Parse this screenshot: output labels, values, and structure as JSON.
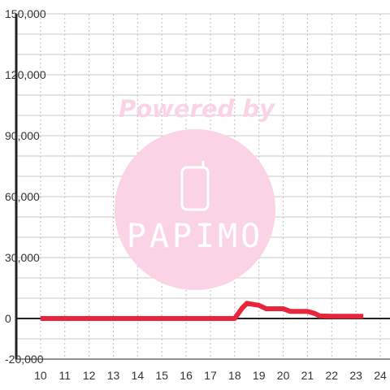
{
  "chart_data": {
    "type": "line",
    "x": [
      10,
      11,
      12,
      13,
      14,
      15,
      16,
      17,
      17.5,
      18,
      18.3,
      18.5,
      19,
      19.3,
      20,
      20.3,
      21,
      21.3,
      21.5,
      22,
      23.3
    ],
    "series": [
      {
        "values": [
          0,
          0,
          0,
          0,
          0,
          0,
          0,
          0,
          0,
          0,
          5000,
          7500,
          6500,
          4800,
          4800,
          3500,
          3500,
          2500,
          1300,
          1100,
          1100
        ],
        "color": "#e8253b"
      }
    ],
    "xlim": [
      9,
      24.4
    ],
    "ylim": [
      -20000,
      150000
    ],
    "x_tick_labels": [
      "10",
      "11",
      "12",
      "13",
      "14",
      "15",
      "16",
      "17",
      "18",
      "19",
      "20",
      "21",
      "22",
      "23",
      "24"
    ],
    "y_tick_labels": [
      "150,000",
      "120,000",
      "90,000",
      "60,000",
      "30,000",
      "0",
      "-20,000"
    ],
    "x_ticks": [
      10,
      11,
      12,
      13,
      14,
      15,
      16,
      17,
      18,
      19,
      20,
      21,
      22,
      23,
      24
    ],
    "y_ticks": [
      150000,
      120000,
      90000,
      60000,
      30000,
      0,
      -20000
    ],
    "grid": true,
    "title": "",
    "xlabel": "",
    "ylabel": ""
  },
  "watermark": {
    "text": "Powered by",
    "brand": "PAPIMO",
    "color": "#fbd3e6"
  }
}
